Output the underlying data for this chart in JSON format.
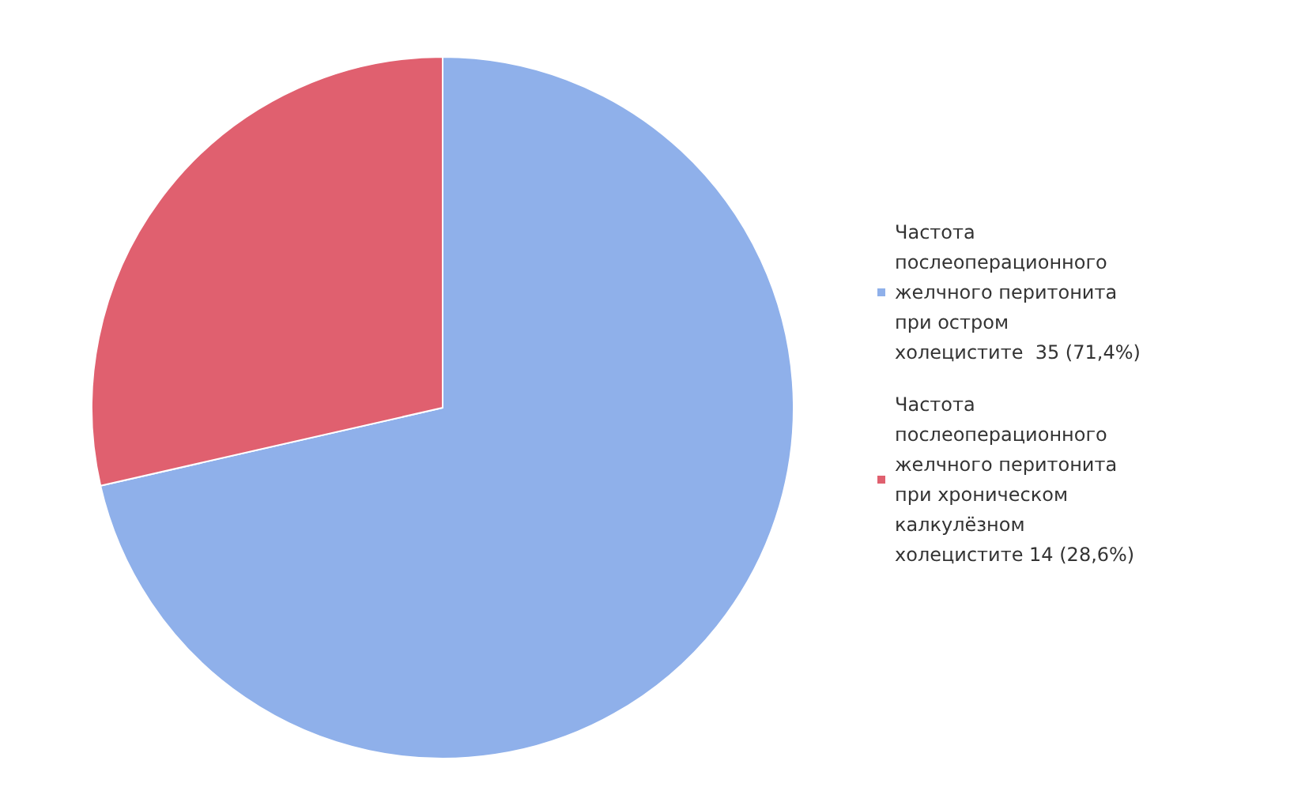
{
  "chart_data": {
    "type": "pie",
    "categories": [
      "Частота послеоперационного желчного перитонита при остром холецистите  35 (71,4%)",
      "Частота послеоперационного желчного перитонита при хроническом калкулёзном холецистите 14 (28,6%)"
    ],
    "values": [
      35,
      14
    ],
    "colors": [
      "#8fb0ea",
      "#e0606f"
    ],
    "legend": "right"
  }
}
